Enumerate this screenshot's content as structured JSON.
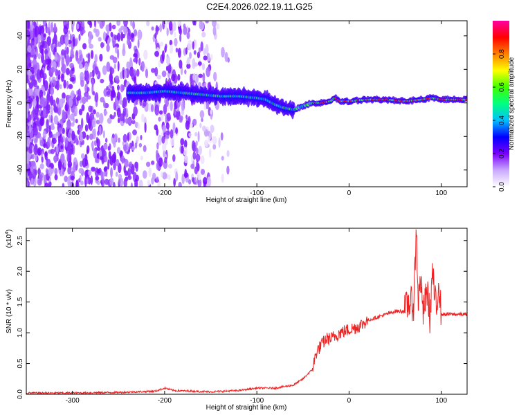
{
  "title": "C2E4.2026.022.19.11.G25",
  "chart_data": [
    {
      "type": "heatmap",
      "title": "C2E4.2026.022.19.11.G25",
      "xlabel": "Height of straight line (km)",
      "ylabel": "Frequency (Hz)",
      "xlim": [
        -350,
        128
      ],
      "ylim": [
        -50,
        49
      ],
      "xticks": [
        -300,
        -200,
        -100,
        0,
        100
      ],
      "xtick_labels": [
        "-300",
        "-200",
        "-100",
        "0",
        "100"
      ],
      "yticks": [
        -40,
        -20,
        0,
        20,
        40
      ],
      "ytick_labels": [
        "-40",
        "-20",
        "0",
        "20",
        "40"
      ],
      "ridge": {
        "description": "frequency of spectral peak vs height",
        "x": [
          -240,
          -220,
          -200,
          -180,
          -160,
          -140,
          -120,
          -100,
          -90,
          -80,
          -70,
          -60,
          -50,
          -40,
          -30,
          -20,
          -15,
          -10,
          -5,
          0,
          20,
          40,
          60,
          80,
          90,
          100,
          128
        ],
        "y": [
          6,
          6,
          7,
          6,
          5,
          4,
          4,
          3,
          2,
          -1,
          -3,
          -4,
          -2,
          0,
          0,
          1,
          3,
          1,
          1,
          1,
          2,
          2,
          1,
          2,
          3,
          2,
          2
        ]
      },
      "colorbar": {
        "label": "Normalized spectral amplitude",
        "range": [
          0,
          1
        ],
        "ticks": [
          0.0,
          0.2,
          0.4,
          0.6,
          0.8
        ],
        "tick_labels": [
          "0.0",
          "0.2",
          "0.4",
          "0.6",
          "0.8"
        ]
      }
    },
    {
      "type": "line",
      "xlabel": "Height of straight line (km)",
      "ylabel": "SNR (10 * v/v)",
      "yscale_label": "(x10",
      "yscale_exponent": "4",
      "yscale_suffix": ")",
      "xlim": [
        -350,
        128
      ],
      "ylim": [
        0,
        2.7
      ],
      "xticks": [
        -300,
        -200,
        -100,
        0,
        100
      ],
      "xtick_labels": [
        "-300",
        "-200",
        "-100",
        "0",
        "100"
      ],
      "yticks": [
        0,
        0.5,
        1.0,
        1.5,
        2.0,
        2.5
      ],
      "ytick_labels": [
        "0.0",
        "0.5",
        "1.0",
        "1.5",
        "2.0",
        "2.5"
      ],
      "series": [
        {
          "name": "SNR",
          "color": "#ee2222",
          "x": [
            -350,
            -300,
            -250,
            -210,
            -200,
            -190,
            -150,
            -120,
            -100,
            -80,
            -60,
            -50,
            -40,
            -35,
            -30,
            -25,
            -20,
            -10,
            0,
            10,
            20,
            30,
            40,
            50,
            60,
            65,
            70,
            73,
            75,
            78,
            80,
            85,
            88,
            90,
            95,
            97,
            100,
            110,
            120,
            128
          ],
          "y": [
            0.02,
            0.02,
            0.03,
            0.05,
            0.1,
            0.06,
            0.04,
            0.06,
            0.1,
            0.1,
            0.15,
            0.25,
            0.4,
            0.7,
            0.8,
            0.9,
            0.9,
            1.0,
            1.05,
            1.1,
            1.2,
            1.25,
            1.3,
            1.35,
            1.35,
            1.5,
            1.45,
            2.7,
            1.5,
            1.9,
            1.3,
            1.7,
            1.2,
            2.0,
            1.3,
            1.9,
            1.3,
            1.3,
            1.3,
            1.3
          ]
        }
      ]
    }
  ]
}
